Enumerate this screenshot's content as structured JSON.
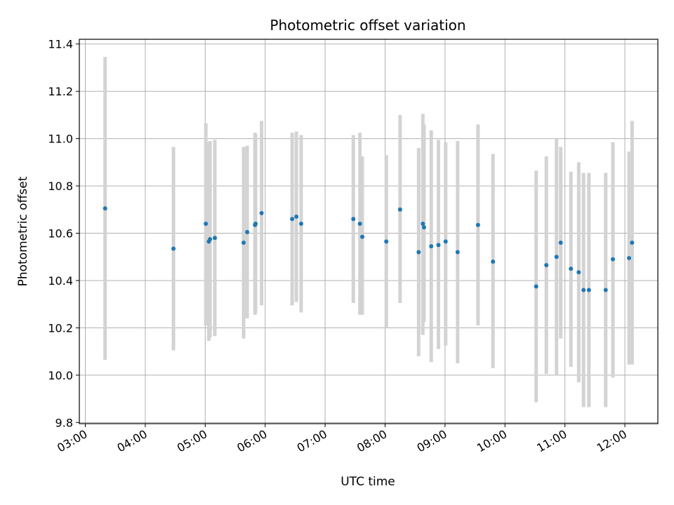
{
  "chart_data": {
    "type": "scatter",
    "title": "Photometric offset variation",
    "xlabel": "UTC time",
    "ylabel": "Photometric offset",
    "x_unit": "hours UTC",
    "xlim": [
      2.9,
      12.55
    ],
    "ylim": [
      9.795,
      11.42
    ],
    "x_ticks": [
      3,
      4,
      5,
      6,
      7,
      8,
      9,
      10,
      11,
      12
    ],
    "x_tick_labels": [
      "03:00",
      "04:00",
      "05:00",
      "06:00",
      "07:00",
      "08:00",
      "09:00",
      "10:00",
      "11:00",
      "12:00"
    ],
    "y_ticks": [
      9.8,
      10.0,
      10.2,
      10.4,
      10.6,
      10.8,
      11.0,
      11.2,
      11.4
    ],
    "y_tick_labels": [
      "9.8",
      "10.0",
      "10.2",
      "10.4",
      "10.6",
      "10.8",
      "11.0",
      "11.2",
      "11.4"
    ],
    "grid": true,
    "marker_color": "#1f77b4",
    "errorbar_color": "#d3d3d3",
    "points": [
      {
        "x": 3.33,
        "y": 10.705,
        "lo": 10.065,
        "hi": 11.345
      },
      {
        "x": 4.47,
        "y": 10.535,
        "lo": 10.105,
        "hi": 10.965
      },
      {
        "x": 5.01,
        "y": 10.64,
        "lo": 10.21,
        "hi": 11.065
      },
      {
        "x": 5.06,
        "y": 10.565,
        "lo": 10.145,
        "hi": 10.985
      },
      {
        "x": 5.08,
        "y": 10.575,
        "lo": 10.16,
        "hi": 10.99
      },
      {
        "x": 5.16,
        "y": 10.58,
        "lo": 10.165,
        "hi": 10.995
      },
      {
        "x": 5.64,
        "y": 10.56,
        "lo": 10.155,
        "hi": 10.965
      },
      {
        "x": 5.7,
        "y": 10.605,
        "lo": 10.24,
        "hi": 10.97
      },
      {
        "x": 5.83,
        "y": 10.635,
        "lo": 10.255,
        "hi": 11.025
      },
      {
        "x": 5.84,
        "y": 10.64,
        "lo": 10.265,
        "hi": 11.02
      },
      {
        "x": 5.94,
        "y": 10.685,
        "lo": 10.295,
        "hi": 11.075
      },
      {
        "x": 6.45,
        "y": 10.66,
        "lo": 10.295,
        "hi": 11.025
      },
      {
        "x": 6.52,
        "y": 10.67,
        "lo": 10.31,
        "hi": 11.03
      },
      {
        "x": 6.6,
        "y": 10.64,
        "lo": 10.265,
        "hi": 11.015
      },
      {
        "x": 7.47,
        "y": 10.66,
        "lo": 10.305,
        "hi": 11.015
      },
      {
        "x": 7.58,
        "y": 10.64,
        "lo": 10.255,
        "hi": 11.025
      },
      {
        "x": 7.62,
        "y": 10.585,
        "lo": 10.255,
        "hi": 10.925
      },
      {
        "x": 8.02,
        "y": 10.565,
        "lo": 10.2,
        "hi": 10.93
      },
      {
        "x": 8.25,
        "y": 10.7,
        "lo": 10.305,
        "hi": 11.1
      },
      {
        "x": 8.56,
        "y": 10.52,
        "lo": 10.08,
        "hi": 10.96
      },
      {
        "x": 8.63,
        "y": 10.64,
        "lo": 10.17,
        "hi": 11.105
      },
      {
        "x": 8.65,
        "y": 10.625,
        "lo": 10.225,
        "hi": 11.06
      },
      {
        "x": 8.77,
        "y": 10.545,
        "lo": 10.055,
        "hi": 11.035
      },
      {
        "x": 8.89,
        "y": 10.55,
        "lo": 10.11,
        "hi": 10.995
      },
      {
        "x": 9.01,
        "y": 10.565,
        "lo": 10.125,
        "hi": 10.985
      },
      {
        "x": 9.21,
        "y": 10.52,
        "lo": 10.05,
        "hi": 10.99
      },
      {
        "x": 9.55,
        "y": 10.635,
        "lo": 10.21,
        "hi": 11.06
      },
      {
        "x": 9.8,
        "y": 10.48,
        "lo": 10.03,
        "hi": 10.935
      },
      {
        "x": 10.52,
        "y": 10.375,
        "lo": 9.885,
        "hi": 10.865
      },
      {
        "x": 10.69,
        "y": 10.465,
        "lo": 10.005,
        "hi": 10.925
      },
      {
        "x": 10.86,
        "y": 10.5,
        "lo": 10.0,
        "hi": 11.0
      },
      {
        "x": 10.93,
        "y": 10.56,
        "lo": 10.155,
        "hi": 10.965
      },
      {
        "x": 11.1,
        "y": 10.45,
        "lo": 10.035,
        "hi": 10.86
      },
      {
        "x": 11.23,
        "y": 10.435,
        "lo": 9.97,
        "hi": 10.9
      },
      {
        "x": 11.31,
        "y": 10.36,
        "lo": 9.865,
        "hi": 10.855
      },
      {
        "x": 11.4,
        "y": 10.36,
        "lo": 9.865,
        "hi": 10.855
      },
      {
        "x": 11.68,
        "y": 10.36,
        "lo": 9.865,
        "hi": 10.855
      },
      {
        "x": 11.8,
        "y": 10.49,
        "lo": 9.99,
        "hi": 10.985
      },
      {
        "x": 12.07,
        "y": 10.495,
        "lo": 10.045,
        "hi": 10.945
      },
      {
        "x": 12.12,
        "y": 10.56,
        "lo": 10.045,
        "hi": 11.075
      }
    ]
  }
}
